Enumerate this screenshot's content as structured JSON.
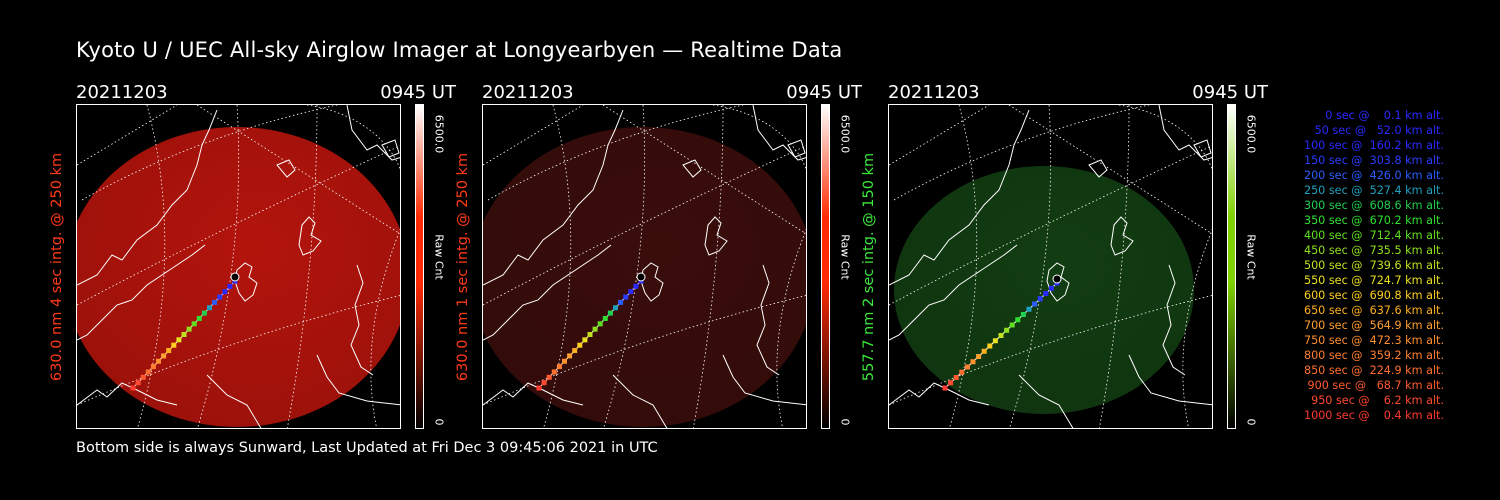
{
  "title": "Kyoto U / UEC All-sky Airglow Imager at Longyearbyen — Realtime Data",
  "footer": "Bottom side is always Sunward, Last Updated at Fri Dec  3 09:45:06 2021 in UTC",
  "panels": [
    {
      "date": "20211203",
      "time": "0945 UT",
      "ylabel": "630.0 nm 4 sec intg. @ 250 km",
      "label_color": "#ff3a1a",
      "cbar_max": "6500.0",
      "cbar_unit": "Raw Cnt",
      "cbar_min": "0",
      "image_color": "#b3140c",
      "cbar_color": "#ff2a00"
    },
    {
      "date": "20211203",
      "time": "0945 UT",
      "ylabel": "630.0 nm 1 sec intg. @ 250 km",
      "label_color": "#ff3a1a",
      "cbar_max": "6500.0",
      "cbar_unit": "Raw Cnt",
      "cbar_min": "0",
      "image_color": "#3a0d0b",
      "cbar_color": "#ff2a00"
    },
    {
      "date": "20211203",
      "time": "0945 UT",
      "ylabel": "557.7 nm 2 sec intg. @ 150 km",
      "label_color": "#3ce83c",
      "cbar_max": "6500.0",
      "cbar_unit": "Raw Cnt",
      "cbar_min": "0",
      "image_color": "#123d12",
      "cbar_color": "#7fd000"
    }
  ],
  "legend": [
    {
      "text": "   0 sec @    0.1 km alt.",
      "color": "#2a2aff"
    },
    {
      "text": "  50 sec @   52.0 km alt.",
      "color": "#2a2aff"
    },
    {
      "text": " 100 sec @  160.2 km alt.",
      "color": "#2a2aff"
    },
    {
      "text": " 150 sec @  303.8 km alt.",
      "color": "#2a3cff"
    },
    {
      "text": " 200 sec @  426.0 km alt.",
      "color": "#2a5cff"
    },
    {
      "text": " 250 sec @  527.4 km alt.",
      "color": "#1f9fbf"
    },
    {
      "text": " 300 sec @  608.6 km alt.",
      "color": "#20d050"
    },
    {
      "text": " 350 sec @  670.2 km alt.",
      "color": "#30e030"
    },
    {
      "text": " 400 sec @  712.4 km alt.",
      "color": "#60e020"
    },
    {
      "text": " 450 sec @  735.5 km alt.",
      "color": "#90e020"
    },
    {
      "text": " 500 sec @  739.6 km alt.",
      "color": "#c0e020"
    },
    {
      "text": " 550 sec @  724.7 km alt.",
      "color": "#e8e020"
    },
    {
      "text": " 600 sec @  690.8 km alt.",
      "color": "#ffd020"
    },
    {
      "text": " 650 sec @  637.6 km alt.",
      "color": "#ffb020"
    },
    {
      "text": " 700 sec @  564.9 km alt.",
      "color": "#ffa030"
    },
    {
      "text": " 750 sec @  472.3 km alt.",
      "color": "#ff9030"
    },
    {
      "text": " 800 sec @  359.2 km alt.",
      "color": "#ff8030"
    },
    {
      "text": " 850 sec @  224.9 km alt.",
      "color": "#ff7030"
    },
    {
      "text": " 900 sec @   68.7 km alt.",
      "color": "#ff5a30"
    },
    {
      "text": " 950 sec @    6.2 km alt.",
      "color": "#ff4a30"
    },
    {
      "text": "1000 sec @    0.4 km alt.",
      "color": "#ff3a30"
    }
  ]
}
